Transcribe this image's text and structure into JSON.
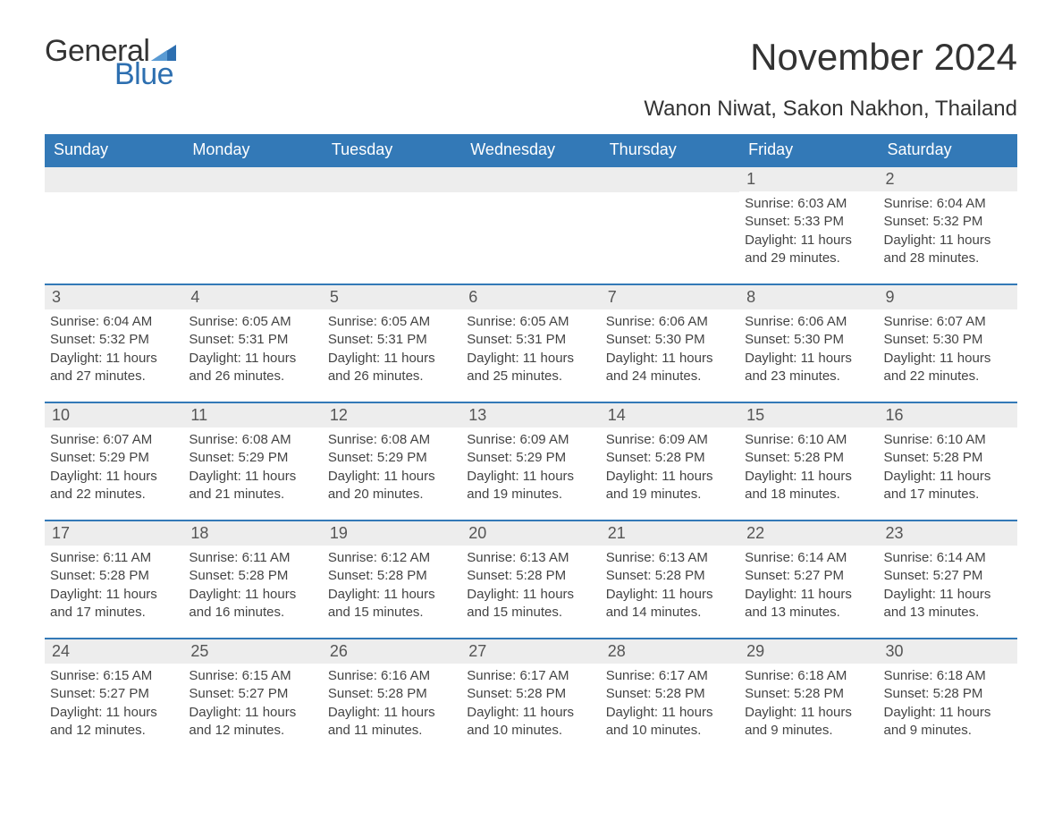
{
  "logo": {
    "word1": "General",
    "word2": "Blue",
    "text_color": "#333333",
    "accent_color": "#2d6fb0"
  },
  "title": "November 2024",
  "location": "Wanon Niwat, Sakon Nakhon, Thailand",
  "colors": {
    "header_bg": "#3379b7",
    "header_text": "#ffffff",
    "row_divider": "#3379b7",
    "daynum_bg": "#ededed",
    "body_text": "#444444",
    "page_bg": "#ffffff"
  },
  "fonts": {
    "title_size_pt": 32,
    "location_size_pt": 18,
    "weekday_size_pt": 14,
    "daynum_size_pt": 14,
    "body_size_pt": 11
  },
  "layout": {
    "columns": 7,
    "rows": 5,
    "aspect_ratio": "1188:918"
  },
  "weekdays": [
    "Sunday",
    "Monday",
    "Tuesday",
    "Wednesday",
    "Thursday",
    "Friday",
    "Saturday"
  ],
  "weeks": [
    [
      {
        "num": "",
        "sunrise": "",
        "sunset": "",
        "daylight": ""
      },
      {
        "num": "",
        "sunrise": "",
        "sunset": "",
        "daylight": ""
      },
      {
        "num": "",
        "sunrise": "",
        "sunset": "",
        "daylight": ""
      },
      {
        "num": "",
        "sunrise": "",
        "sunset": "",
        "daylight": ""
      },
      {
        "num": "",
        "sunrise": "",
        "sunset": "",
        "daylight": ""
      },
      {
        "num": "1",
        "sunrise": "Sunrise: 6:03 AM",
        "sunset": "Sunset: 5:33 PM",
        "daylight": "Daylight: 11 hours and 29 minutes."
      },
      {
        "num": "2",
        "sunrise": "Sunrise: 6:04 AM",
        "sunset": "Sunset: 5:32 PM",
        "daylight": "Daylight: 11 hours and 28 minutes."
      }
    ],
    [
      {
        "num": "3",
        "sunrise": "Sunrise: 6:04 AM",
        "sunset": "Sunset: 5:32 PM",
        "daylight": "Daylight: 11 hours and 27 minutes."
      },
      {
        "num": "4",
        "sunrise": "Sunrise: 6:05 AM",
        "sunset": "Sunset: 5:31 PM",
        "daylight": "Daylight: 11 hours and 26 minutes."
      },
      {
        "num": "5",
        "sunrise": "Sunrise: 6:05 AM",
        "sunset": "Sunset: 5:31 PM",
        "daylight": "Daylight: 11 hours and 26 minutes."
      },
      {
        "num": "6",
        "sunrise": "Sunrise: 6:05 AM",
        "sunset": "Sunset: 5:31 PM",
        "daylight": "Daylight: 11 hours and 25 minutes."
      },
      {
        "num": "7",
        "sunrise": "Sunrise: 6:06 AM",
        "sunset": "Sunset: 5:30 PM",
        "daylight": "Daylight: 11 hours and 24 minutes."
      },
      {
        "num": "8",
        "sunrise": "Sunrise: 6:06 AM",
        "sunset": "Sunset: 5:30 PM",
        "daylight": "Daylight: 11 hours and 23 minutes."
      },
      {
        "num": "9",
        "sunrise": "Sunrise: 6:07 AM",
        "sunset": "Sunset: 5:30 PM",
        "daylight": "Daylight: 11 hours and 22 minutes."
      }
    ],
    [
      {
        "num": "10",
        "sunrise": "Sunrise: 6:07 AM",
        "sunset": "Sunset: 5:29 PM",
        "daylight": "Daylight: 11 hours and 22 minutes."
      },
      {
        "num": "11",
        "sunrise": "Sunrise: 6:08 AM",
        "sunset": "Sunset: 5:29 PM",
        "daylight": "Daylight: 11 hours and 21 minutes."
      },
      {
        "num": "12",
        "sunrise": "Sunrise: 6:08 AM",
        "sunset": "Sunset: 5:29 PM",
        "daylight": "Daylight: 11 hours and 20 minutes."
      },
      {
        "num": "13",
        "sunrise": "Sunrise: 6:09 AM",
        "sunset": "Sunset: 5:29 PM",
        "daylight": "Daylight: 11 hours and 19 minutes."
      },
      {
        "num": "14",
        "sunrise": "Sunrise: 6:09 AM",
        "sunset": "Sunset: 5:28 PM",
        "daylight": "Daylight: 11 hours and 19 minutes."
      },
      {
        "num": "15",
        "sunrise": "Sunrise: 6:10 AM",
        "sunset": "Sunset: 5:28 PM",
        "daylight": "Daylight: 11 hours and 18 minutes."
      },
      {
        "num": "16",
        "sunrise": "Sunrise: 6:10 AM",
        "sunset": "Sunset: 5:28 PM",
        "daylight": "Daylight: 11 hours and 17 minutes."
      }
    ],
    [
      {
        "num": "17",
        "sunrise": "Sunrise: 6:11 AM",
        "sunset": "Sunset: 5:28 PM",
        "daylight": "Daylight: 11 hours and 17 minutes."
      },
      {
        "num": "18",
        "sunrise": "Sunrise: 6:11 AM",
        "sunset": "Sunset: 5:28 PM",
        "daylight": "Daylight: 11 hours and 16 minutes."
      },
      {
        "num": "19",
        "sunrise": "Sunrise: 6:12 AM",
        "sunset": "Sunset: 5:28 PM",
        "daylight": "Daylight: 11 hours and 15 minutes."
      },
      {
        "num": "20",
        "sunrise": "Sunrise: 6:13 AM",
        "sunset": "Sunset: 5:28 PM",
        "daylight": "Daylight: 11 hours and 15 minutes."
      },
      {
        "num": "21",
        "sunrise": "Sunrise: 6:13 AM",
        "sunset": "Sunset: 5:28 PM",
        "daylight": "Daylight: 11 hours and 14 minutes."
      },
      {
        "num": "22",
        "sunrise": "Sunrise: 6:14 AM",
        "sunset": "Sunset: 5:27 PM",
        "daylight": "Daylight: 11 hours and 13 minutes."
      },
      {
        "num": "23",
        "sunrise": "Sunrise: 6:14 AM",
        "sunset": "Sunset: 5:27 PM",
        "daylight": "Daylight: 11 hours and 13 minutes."
      }
    ],
    [
      {
        "num": "24",
        "sunrise": "Sunrise: 6:15 AM",
        "sunset": "Sunset: 5:27 PM",
        "daylight": "Daylight: 11 hours and 12 minutes."
      },
      {
        "num": "25",
        "sunrise": "Sunrise: 6:15 AM",
        "sunset": "Sunset: 5:27 PM",
        "daylight": "Daylight: 11 hours and 12 minutes."
      },
      {
        "num": "26",
        "sunrise": "Sunrise: 6:16 AM",
        "sunset": "Sunset: 5:28 PM",
        "daylight": "Daylight: 11 hours and 11 minutes."
      },
      {
        "num": "27",
        "sunrise": "Sunrise: 6:17 AM",
        "sunset": "Sunset: 5:28 PM",
        "daylight": "Daylight: 11 hours and 10 minutes."
      },
      {
        "num": "28",
        "sunrise": "Sunrise: 6:17 AM",
        "sunset": "Sunset: 5:28 PM",
        "daylight": "Daylight: 11 hours and 10 minutes."
      },
      {
        "num": "29",
        "sunrise": "Sunrise: 6:18 AM",
        "sunset": "Sunset: 5:28 PM",
        "daylight": "Daylight: 11 hours and 9 minutes."
      },
      {
        "num": "30",
        "sunrise": "Sunrise: 6:18 AM",
        "sunset": "Sunset: 5:28 PM",
        "daylight": "Daylight: 11 hours and 9 minutes."
      }
    ]
  ]
}
